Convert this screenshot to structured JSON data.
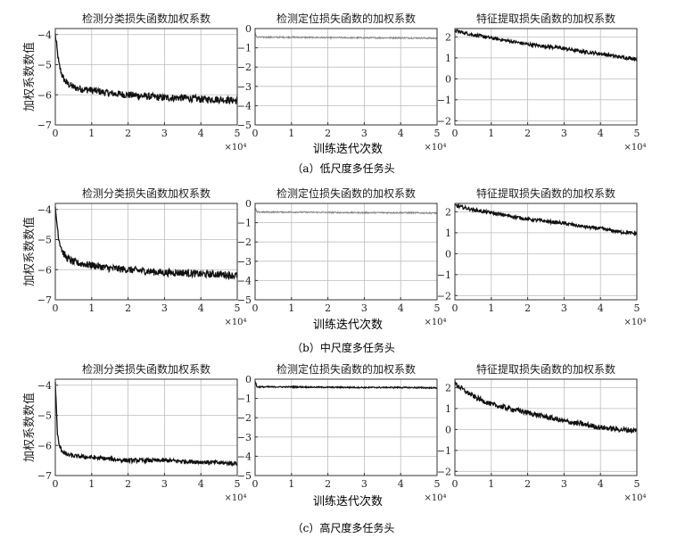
{
  "figure": {
    "ylabel": "加权系数数值",
    "xlabel": "训练迭代次数",
    "x_multiplier": "×10⁴",
    "captions": [
      "（a）低尺度多任务头",
      "（b）中尺度多任务头",
      "（c）高尺度多任务头"
    ],
    "colors": {
      "axis": "#333333",
      "grid": "#bdbdbd",
      "series_dark": "#111111",
      "series_light": "#888888"
    }
  },
  "chart_data": [
    {
      "id": "a1",
      "type": "line",
      "title": "检测分类损失函数加权系数",
      "xlim": [
        0,
        5
      ],
      "ylim": [
        -7,
        -3.8
      ],
      "xticks": [
        0,
        1,
        2,
        3,
        4,
        5
      ],
      "yticks": [
        -4,
        -5,
        -6,
        -7
      ],
      "grid": true,
      "noise": 0.12,
      "series": [
        {
          "x": [
            0,
            0.05,
            0.1,
            0.2,
            0.3,
            0.5,
            0.7,
            1,
            1.5,
            2,
            2.5,
            3,
            3.5,
            4,
            4.5,
            5
          ],
          "y": [
            -4.0,
            -4.5,
            -5.0,
            -5.4,
            -5.6,
            -5.75,
            -5.8,
            -5.85,
            -5.95,
            -6.0,
            -6.05,
            -6.1,
            -6.1,
            -6.15,
            -6.15,
            -6.2
          ]
        }
      ]
    },
    {
      "id": "a2",
      "type": "line",
      "title": "检测定位损失函数的加权系数",
      "xlim": [
        0,
        5
      ],
      "ylim": [
        -5,
        0
      ],
      "xticks": [
        0,
        1,
        2,
        3,
        4,
        5
      ],
      "yticks": [
        0,
        -1,
        -2,
        -3,
        -4,
        -5
      ],
      "grid": true,
      "noise": 0.035,
      "light": true,
      "series": [
        {
          "x": [
            0,
            0.05,
            1,
            2,
            3,
            4,
            5
          ],
          "y": [
            -0.25,
            -0.45,
            -0.45,
            -0.47,
            -0.48,
            -0.48,
            -0.5
          ]
        }
      ]
    },
    {
      "id": "a3",
      "type": "line",
      "title": "特征提取损失函数的加权系数",
      "xlim": [
        0,
        5
      ],
      "ylim": [
        -2.2,
        2.4
      ],
      "xticks": [
        0,
        1,
        2,
        3,
        4,
        5
      ],
      "yticks": [
        2,
        1,
        0,
        -1,
        -2
      ],
      "grid": true,
      "noise": 0.08,
      "series": [
        {
          "x": [
            0,
            0.5,
            1,
            1.5,
            2,
            2.5,
            3,
            3.5,
            4,
            4.5,
            5
          ],
          "y": [
            2.3,
            2.1,
            1.95,
            1.8,
            1.65,
            1.55,
            1.45,
            1.3,
            1.2,
            1.05,
            0.95
          ]
        }
      ]
    },
    {
      "id": "b1",
      "type": "line",
      "title": "检测分类损失函数加权系数",
      "xlim": [
        0,
        5
      ],
      "ylim": [
        -7,
        -3.8
      ],
      "xticks": [
        0,
        1,
        2,
        3,
        4,
        5
      ],
      "yticks": [
        -4,
        -5,
        -6,
        -7
      ],
      "grid": true,
      "noise": 0.12,
      "series": [
        {
          "x": [
            0,
            0.05,
            0.1,
            0.2,
            0.3,
            0.5,
            0.7,
            1,
            1.5,
            2,
            2.5,
            3,
            3.5,
            4,
            4.5,
            5
          ],
          "y": [
            -4.0,
            -4.5,
            -5.0,
            -5.4,
            -5.6,
            -5.75,
            -5.8,
            -5.85,
            -5.95,
            -6.0,
            -6.05,
            -6.1,
            -6.1,
            -6.15,
            -6.15,
            -6.2
          ]
        }
      ]
    },
    {
      "id": "b2",
      "type": "line",
      "title": "检测定位损失函数的加权系数",
      "xlim": [
        0,
        5
      ],
      "ylim": [
        -5,
        0
      ],
      "xticks": [
        0,
        1,
        2,
        3,
        4,
        5
      ],
      "yticks": [
        0,
        -1,
        -2,
        -3,
        -4,
        -5
      ],
      "grid": true,
      "noise": 0.035,
      "light": true,
      "series": [
        {
          "x": [
            0,
            0.05,
            1,
            2,
            3,
            4,
            5
          ],
          "y": [
            -0.25,
            -0.45,
            -0.45,
            -0.47,
            -0.48,
            -0.48,
            -0.5
          ]
        }
      ]
    },
    {
      "id": "b3",
      "type": "line",
      "title": "特征提取损失函数的加权系数",
      "xlim": [
        0,
        5
      ],
      "ylim": [
        -2.2,
        2.4
      ],
      "xticks": [
        0,
        1,
        2,
        3,
        4,
        5
      ],
      "yticks": [
        2,
        1,
        0,
        -1,
        -2
      ],
      "grid": true,
      "noise": 0.08,
      "series": [
        {
          "x": [
            0,
            0.5,
            1,
            1.5,
            2,
            2.5,
            3,
            3.5,
            4,
            4.5,
            5
          ],
          "y": [
            2.3,
            2.1,
            1.95,
            1.8,
            1.65,
            1.55,
            1.45,
            1.3,
            1.2,
            1.05,
            0.95
          ]
        }
      ]
    },
    {
      "id": "c1",
      "type": "line",
      "title": "检测分类损失函数加权系数",
      "xlim": [
        0,
        5
      ],
      "ylim": [
        -7,
        -3.8
      ],
      "xticks": [
        0,
        1,
        2,
        3,
        4,
        5
      ],
      "yticks": [
        -4,
        -5,
        -6,
        -7
      ],
      "grid": true,
      "noise": 0.07,
      "series": [
        {
          "x": [
            0,
            0.03,
            0.06,
            0.1,
            0.2,
            0.3,
            0.5,
            1,
            1.5,
            2,
            3,
            4,
            5
          ],
          "y": [
            -3.9,
            -4.8,
            -5.6,
            -6.0,
            -6.2,
            -6.3,
            -6.35,
            -6.4,
            -6.45,
            -6.5,
            -6.5,
            -6.55,
            -6.6
          ]
        }
      ]
    },
    {
      "id": "c2",
      "type": "line",
      "title": "检测定位损失函数的加权系数",
      "xlim": [
        0,
        5
      ],
      "ylim": [
        -5,
        0
      ],
      "xticks": [
        0,
        1,
        2,
        3,
        4,
        5
      ],
      "yticks": [
        0,
        -1,
        -2,
        -3,
        -4,
        -5
      ],
      "grid": true,
      "noise": 0.03,
      "series": [
        {
          "x": [
            0,
            0.05,
            1,
            2,
            3,
            4,
            5
          ],
          "y": [
            -0.1,
            -0.4,
            -0.4,
            -0.42,
            -0.43,
            -0.43,
            -0.45
          ]
        }
      ]
    },
    {
      "id": "c3",
      "type": "line",
      "title": "特征提取损失函数的加权系数",
      "xlim": [
        0,
        5
      ],
      "ylim": [
        -2.2,
        2.4
      ],
      "xticks": [
        0,
        1,
        2,
        3,
        4,
        5
      ],
      "yticks": [
        2,
        1,
        0,
        -1,
        -2
      ],
      "grid": true,
      "noise": 0.12,
      "series": [
        {
          "x": [
            0,
            0.3,
            0.6,
            1,
            1.5,
            2,
            2.5,
            3,
            3.5,
            4,
            4.5,
            5
          ],
          "y": [
            2.2,
            1.8,
            1.5,
            1.2,
            1.0,
            0.8,
            0.6,
            0.4,
            0.25,
            0.1,
            0.0,
            -0.05
          ]
        }
      ]
    }
  ]
}
